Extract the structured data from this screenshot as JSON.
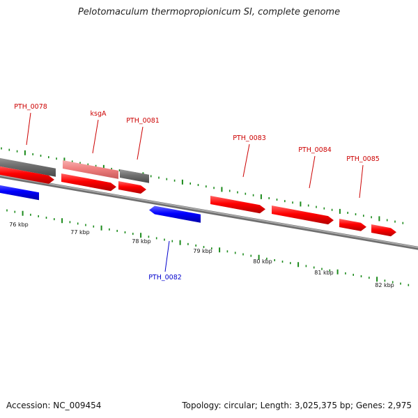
{
  "title": "Pelotomaculum thermopropionicum SI, complete genome",
  "footer": {
    "accession": "Accession: NC_009454",
    "summary": "Topology: circular; Length: 3,025,375 bp; Genes: 2,975"
  },
  "colors": {
    "forward_gene": "#ff0000",
    "reverse_gene": "#0000ff",
    "gray_feature": "#6e6e6e",
    "highlight_feature": "#f08080",
    "backbone": "#8c8c8c",
    "ticks": "#1a8a1a",
    "red_label": "#cc0000",
    "blue_label": "#0000cc"
  },
  "scale_labels": [
    "76 kbp",
    "77 kbp",
    "78 kbp",
    "79 kbp",
    "80 kbp",
    "81 kbp",
    "82 kbp"
  ],
  "gene_labels": [
    {
      "name": "PTH_0078",
      "strand": "forward"
    },
    {
      "name": "ksgA",
      "strand": "forward"
    },
    {
      "name": "PTH_0081",
      "strand": "forward"
    },
    {
      "name": "PTH_0082",
      "strand": "reverse"
    },
    {
      "name": "PTH_0083",
      "strand": "forward"
    },
    {
      "name": "PTH_0084",
      "strand": "forward"
    },
    {
      "name": "PTH_0085",
      "strand": "forward"
    }
  ]
}
